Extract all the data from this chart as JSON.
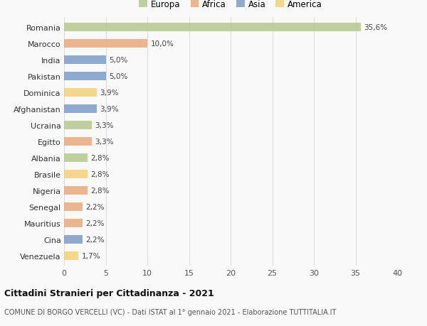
{
  "countries": [
    "Romania",
    "Marocco",
    "India",
    "Pakistan",
    "Dominica",
    "Afghanistan",
    "Ucraina",
    "Egitto",
    "Albania",
    "Brasile",
    "Nigeria",
    "Senegal",
    "Mauritius",
    "Cina",
    "Venezuela"
  ],
  "values": [
    35.6,
    10.0,
    5.0,
    5.0,
    3.9,
    3.9,
    3.3,
    3.3,
    2.8,
    2.8,
    2.8,
    2.2,
    2.2,
    2.2,
    1.7
  ],
  "labels": [
    "35,6%",
    "10,0%",
    "5,0%",
    "5,0%",
    "3,9%",
    "3,9%",
    "3,3%",
    "3,3%",
    "2,8%",
    "2,8%",
    "2,8%",
    "2,2%",
    "2,2%",
    "2,2%",
    "1,7%"
  ],
  "continents": [
    "Europa",
    "Africa",
    "Asia",
    "Asia",
    "America",
    "Asia",
    "Europa",
    "Africa",
    "Europa",
    "America",
    "Africa",
    "Africa",
    "Africa",
    "Asia",
    "America"
  ],
  "colors": {
    "Europa": "#b5c98e",
    "Africa": "#e8a97e",
    "Asia": "#7b9dc7",
    "America": "#f5d07a"
  },
  "legend_order": [
    "Europa",
    "Africa",
    "Asia",
    "America"
  ],
  "legend_colors": [
    "#b5c98e",
    "#e8a97e",
    "#7b9dc7",
    "#f5d07a"
  ],
  "xlim": [
    0,
    40
  ],
  "xticks": [
    0,
    5,
    10,
    15,
    20,
    25,
    30,
    35,
    40
  ],
  "title": "Cittadini Stranieri per Cittadinanza - 2021",
  "subtitle": "COMUNE DI BORGO VERCELLI (VC) - Dati ISTAT al 1° gennaio 2021 - Elaborazione TUTTITALIA.IT",
  "background_color": "#f9f9f9",
  "grid_color": "#dddddd"
}
